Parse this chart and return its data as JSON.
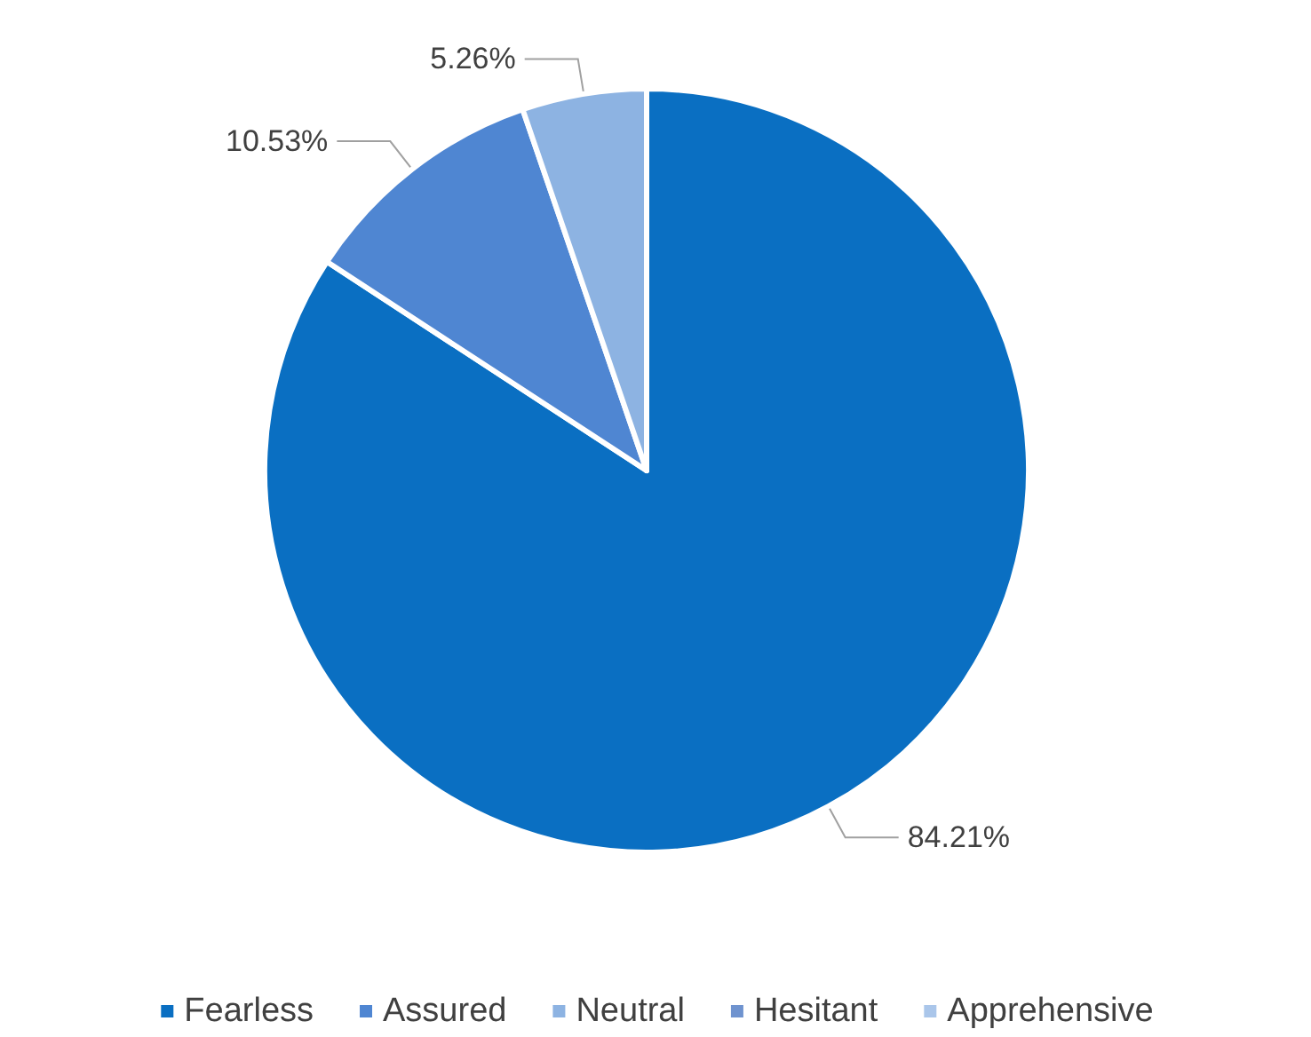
{
  "chart_data": {
    "type": "pie",
    "categories": [
      "Fearless",
      "Assured",
      "Neutral",
      "Hesitant",
      "Apprehensive"
    ],
    "values": [
      84.21,
      10.53,
      5.26,
      0,
      0
    ],
    "colors": [
      "#0a6fc2",
      "#4f86d2",
      "#8db3e2",
      "#6f93cf",
      "#aac6ea"
    ],
    "value_labels": [
      "84.21%",
      "10.53%",
      "5.26%",
      null,
      null
    ],
    "legend": "bottom"
  }
}
